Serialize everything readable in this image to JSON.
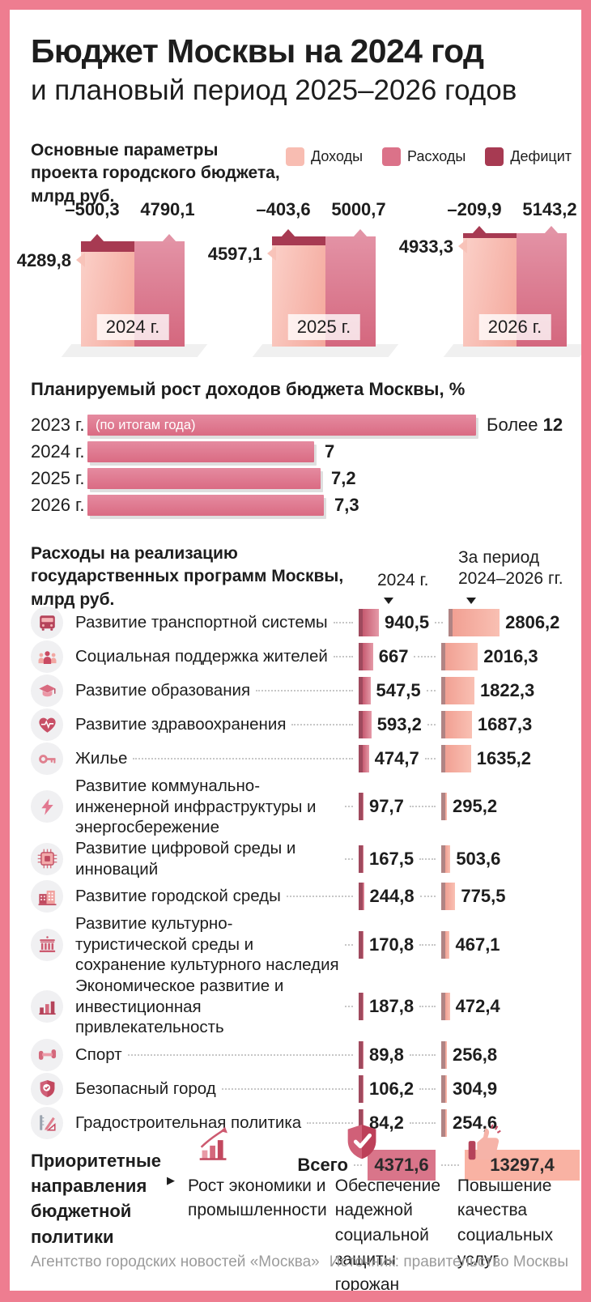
{
  "header": {
    "title": "Бюджет Москвы на 2024 год",
    "subtitle": "и плановый период 2025–2026 годов"
  },
  "palette": {
    "frame": "#ee7d90",
    "income": "#f8bdb2",
    "expenses": "#db7289",
    "deficit": "#a73a52",
    "accent_dark": "#b5435a",
    "table_bar_2024": "#c65a70",
    "table_bar_period": "#f5ab9e",
    "total_box_2024": "#d9758a",
    "total_box_period": "#f9b2a3",
    "footer_text": "#9b9b9b"
  },
  "chart_data": [
    {
      "type": "bar",
      "title": "Основные параметры проекта городского бюджета, млрд руб.",
      "legend": [
        {
          "label": "Доходы",
          "color": "#f8bdb2"
        },
        {
          "label": "Расходы",
          "color": "#db7289"
        },
        {
          "label": "Дефицит",
          "color": "#a73a52"
        }
      ],
      "categories": [
        "2024 г.",
        "2025 г.",
        "2026 г."
      ],
      "series": [
        {
          "name": "Доходы",
          "values": [
            4289.8,
            4597.1,
            4933.3
          ],
          "labels": [
            "4289,8",
            "4597,1",
            "4933,3"
          ]
        },
        {
          "name": "Расходы",
          "values": [
            4790.1,
            5000.7,
            5143.2
          ],
          "labels": [
            "4790,1",
            "5000,7",
            "5143,2"
          ]
        },
        {
          "name": "Дефицит",
          "values": [
            -500.3,
            -403.6,
            -209.9
          ],
          "labels": [
            "–500,3",
            "–403,6",
            "–209,9"
          ]
        }
      ]
    },
    {
      "type": "bar",
      "title": "Планируемый рост доходов бюджета Москвы, %",
      "categories": [
        "2023 г.",
        "2024 г.",
        "2025 г.",
        "2026 г."
      ],
      "values": [
        12,
        7,
        7.2,
        7.3
      ],
      "xlim": [
        0,
        12.5
      ],
      "rows": [
        {
          "year": "2023 г.",
          "value": 12,
          "prefix": "Более ",
          "display": "12",
          "note": "(по итогам года)"
        },
        {
          "year": "2024 г.",
          "value": 7,
          "prefix": "",
          "display": "7"
        },
        {
          "year": "2025 г.",
          "value": 7.2,
          "prefix": "",
          "display": "7,2"
        },
        {
          "year": "2026 г.",
          "value": 7.3,
          "prefix": "",
          "display": "7,3"
        }
      ]
    },
    {
      "type": "table",
      "title": "Расходы на реализацию государственных программ Москвы, млрд руб.",
      "columns": [
        "2024 г.",
        "За период 2024–2026 гг."
      ],
      "rows": [
        {
          "icon": "bus-icon",
          "label": "Развитие транспортной системы",
          "v2024": 940.5,
          "d2024": "940,5",
          "vperiod": 2806.2,
          "dperiod": "2806,2"
        },
        {
          "icon": "people-icon",
          "label": "Социальная поддержка жителей",
          "v2024": 667,
          "d2024": "667",
          "vperiod": 2016.3,
          "dperiod": "2016,3"
        },
        {
          "icon": "education-icon",
          "label": "Развитие образования",
          "v2024": 547.5,
          "d2024": "547,5",
          "vperiod": 1822.3,
          "dperiod": "1822,3"
        },
        {
          "icon": "health-icon",
          "label": "Развитие здравоохранения",
          "v2024": 593.2,
          "d2024": "593,2",
          "vperiod": 1687.3,
          "dperiod": "1687,3"
        },
        {
          "icon": "key-icon",
          "label": "Жилье",
          "v2024": 474.7,
          "d2024": "474,7",
          "vperiod": 1635.2,
          "dperiod": "1635,2"
        },
        {
          "icon": "energy-icon",
          "label": "Развитие коммунально-инженерной инфраструктуры и энергосбережение",
          "v2024": 97.7,
          "d2024": "97,7",
          "vperiod": 295.2,
          "dperiod": "295,2"
        },
        {
          "icon": "chip-icon",
          "label": "Развитие цифровой среды и инноваций",
          "v2024": 167.5,
          "d2024": "167,5",
          "vperiod": 503.6,
          "dperiod": "503,6"
        },
        {
          "icon": "city-icon",
          "label": "Развитие городской среды",
          "v2024": 244.8,
          "d2024": "244,8",
          "vperiod": 775.5,
          "dperiod": "775,5"
        },
        {
          "icon": "culture-icon",
          "label": "Развитие культурно-туристической среды и сохранение культурного наследия",
          "v2024": 170.8,
          "d2024": "170,8",
          "vperiod": 467.1,
          "dperiod": "467,1"
        },
        {
          "icon": "economy-icon",
          "label": "Экономическое развитие и инвестиционная привлекательность",
          "v2024": 187.8,
          "d2024": "187,8",
          "vperiod": 472.4,
          "dperiod": "472,4"
        },
        {
          "icon": "sport-icon",
          "label": "Спорт",
          "v2024": 89.8,
          "d2024": "89,8",
          "vperiod": 256.8,
          "dperiod": "256,8"
        },
        {
          "icon": "safety-icon",
          "label": "Безопасный город",
          "v2024": 106.2,
          "d2024": "106,2",
          "vperiod": 304.9,
          "dperiod": "304,9"
        },
        {
          "icon": "construction-icon",
          "label": "Градостроительная политика",
          "v2024": 84.2,
          "d2024": "84,2",
          "vperiod": 254.6,
          "dperiod": "254,6"
        }
      ],
      "total": {
        "label": "Всего",
        "v2024": 4371.6,
        "d2024": "4371,6",
        "vperiod": 13297.4,
        "dperiod": "13297,4"
      }
    }
  ],
  "priorities": {
    "heading": "Приоритетные направления бюджетной политики",
    "items": [
      {
        "icon": "growth-icon",
        "text": "Рост экономики и промышленности"
      },
      {
        "icon": "shield-check-icon",
        "text": "Обеспечение надежной социальной защиты горожан"
      },
      {
        "icon": "thumbs-up-icon",
        "text": "Повышение качества социальных услуг"
      }
    ]
  },
  "footer": {
    "left": "Агентство городских новостей «Москва»",
    "right": "Источник: правительство Москвы"
  }
}
